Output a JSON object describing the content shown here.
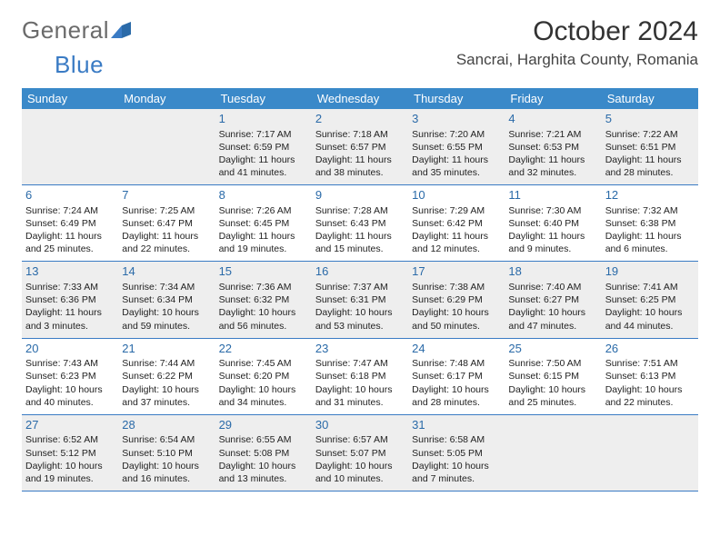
{
  "logo": {
    "part1": "General",
    "part2": "Blue"
  },
  "title": "October 2024",
  "location": "Sancrai, Harghita County, Romania",
  "colors": {
    "header_bg": "#3a89c9",
    "header_text": "#ffffff",
    "daynum": "#2a6aa8",
    "shade_bg": "#eeeeee",
    "divider": "#3a7bc4",
    "logo_gray": "#6b6b6b",
    "logo_blue": "#3a7bc4"
  },
  "day_names": [
    "Sunday",
    "Monday",
    "Tuesday",
    "Wednesday",
    "Thursday",
    "Friday",
    "Saturday"
  ],
  "weeks": [
    [
      {
        "blank": true
      },
      {
        "blank": true
      },
      {
        "n": "1",
        "sunrise": "7:17 AM",
        "sunset": "6:59 PM",
        "daylight": "11 hours and 41 minutes."
      },
      {
        "n": "2",
        "sunrise": "7:18 AM",
        "sunset": "6:57 PM",
        "daylight": "11 hours and 38 minutes."
      },
      {
        "n": "3",
        "sunrise": "7:20 AM",
        "sunset": "6:55 PM",
        "daylight": "11 hours and 35 minutes."
      },
      {
        "n": "4",
        "sunrise": "7:21 AM",
        "sunset": "6:53 PM",
        "daylight": "11 hours and 32 minutes."
      },
      {
        "n": "5",
        "sunrise": "7:22 AM",
        "sunset": "6:51 PM",
        "daylight": "11 hours and 28 minutes."
      }
    ],
    [
      {
        "n": "6",
        "sunrise": "7:24 AM",
        "sunset": "6:49 PM",
        "daylight": "11 hours and 25 minutes."
      },
      {
        "n": "7",
        "sunrise": "7:25 AM",
        "sunset": "6:47 PM",
        "daylight": "11 hours and 22 minutes."
      },
      {
        "n": "8",
        "sunrise": "7:26 AM",
        "sunset": "6:45 PM",
        "daylight": "11 hours and 19 minutes."
      },
      {
        "n": "9",
        "sunrise": "7:28 AM",
        "sunset": "6:43 PM",
        "daylight": "11 hours and 15 minutes."
      },
      {
        "n": "10",
        "sunrise": "7:29 AM",
        "sunset": "6:42 PM",
        "daylight": "11 hours and 12 minutes."
      },
      {
        "n": "11",
        "sunrise": "7:30 AM",
        "sunset": "6:40 PM",
        "daylight": "11 hours and 9 minutes."
      },
      {
        "n": "12",
        "sunrise": "7:32 AM",
        "sunset": "6:38 PM",
        "daylight": "11 hours and 6 minutes."
      }
    ],
    [
      {
        "n": "13",
        "sunrise": "7:33 AM",
        "sunset": "6:36 PM",
        "daylight": "11 hours and 3 minutes."
      },
      {
        "n": "14",
        "sunrise": "7:34 AM",
        "sunset": "6:34 PM",
        "daylight": "10 hours and 59 minutes."
      },
      {
        "n": "15",
        "sunrise": "7:36 AM",
        "sunset": "6:32 PM",
        "daylight": "10 hours and 56 minutes."
      },
      {
        "n": "16",
        "sunrise": "7:37 AM",
        "sunset": "6:31 PM",
        "daylight": "10 hours and 53 minutes."
      },
      {
        "n": "17",
        "sunrise": "7:38 AM",
        "sunset": "6:29 PM",
        "daylight": "10 hours and 50 minutes."
      },
      {
        "n": "18",
        "sunrise": "7:40 AM",
        "sunset": "6:27 PM",
        "daylight": "10 hours and 47 minutes."
      },
      {
        "n": "19",
        "sunrise": "7:41 AM",
        "sunset": "6:25 PM",
        "daylight": "10 hours and 44 minutes."
      }
    ],
    [
      {
        "n": "20",
        "sunrise": "7:43 AM",
        "sunset": "6:23 PM",
        "daylight": "10 hours and 40 minutes."
      },
      {
        "n": "21",
        "sunrise": "7:44 AM",
        "sunset": "6:22 PM",
        "daylight": "10 hours and 37 minutes."
      },
      {
        "n": "22",
        "sunrise": "7:45 AM",
        "sunset": "6:20 PM",
        "daylight": "10 hours and 34 minutes."
      },
      {
        "n": "23",
        "sunrise": "7:47 AM",
        "sunset": "6:18 PM",
        "daylight": "10 hours and 31 minutes."
      },
      {
        "n": "24",
        "sunrise": "7:48 AM",
        "sunset": "6:17 PM",
        "daylight": "10 hours and 28 minutes."
      },
      {
        "n": "25",
        "sunrise": "7:50 AM",
        "sunset": "6:15 PM",
        "daylight": "10 hours and 25 minutes."
      },
      {
        "n": "26",
        "sunrise": "7:51 AM",
        "sunset": "6:13 PM",
        "daylight": "10 hours and 22 minutes."
      }
    ],
    [
      {
        "n": "27",
        "sunrise": "6:52 AM",
        "sunset": "5:12 PM",
        "daylight": "10 hours and 19 minutes."
      },
      {
        "n": "28",
        "sunrise": "6:54 AM",
        "sunset": "5:10 PM",
        "daylight": "10 hours and 16 minutes."
      },
      {
        "n": "29",
        "sunrise": "6:55 AM",
        "sunset": "5:08 PM",
        "daylight": "10 hours and 13 minutes."
      },
      {
        "n": "30",
        "sunrise": "6:57 AM",
        "sunset": "5:07 PM",
        "daylight": "10 hours and 10 minutes."
      },
      {
        "n": "31",
        "sunrise": "6:58 AM",
        "sunset": "5:05 PM",
        "daylight": "10 hours and 7 minutes."
      },
      {
        "blank": true
      },
      {
        "blank": true
      }
    ]
  ],
  "labels": {
    "sunrise": "Sunrise: ",
    "sunset": "Sunset: ",
    "daylight": "Daylight: "
  }
}
